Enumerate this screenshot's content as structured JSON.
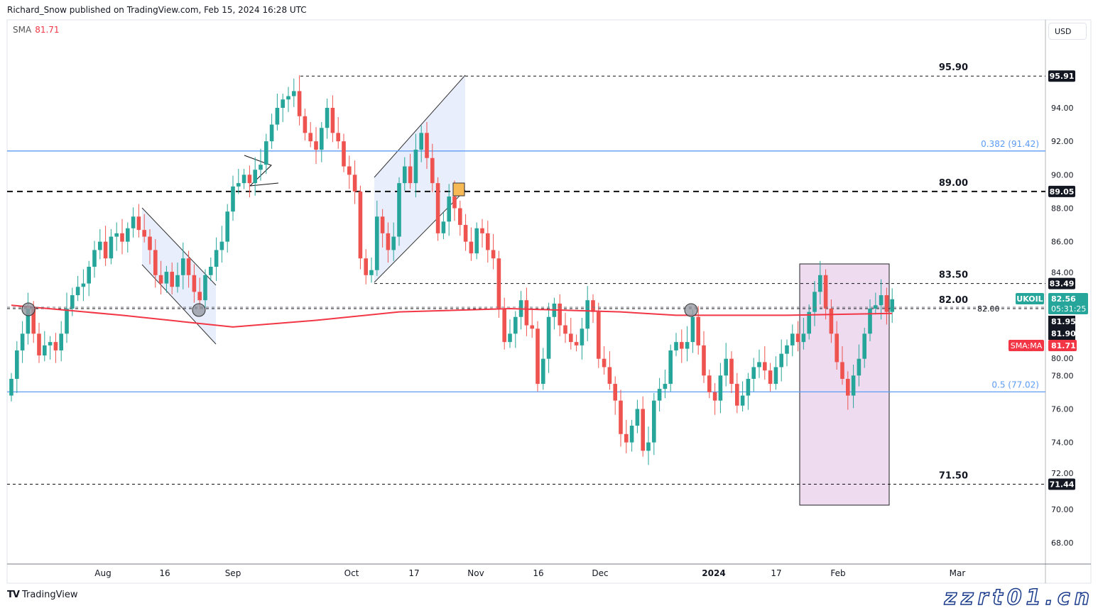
{
  "header": {
    "published": "Richard_Snow published on TradingView.com, Feb 15, 2024 16:28 UTC"
  },
  "legend": {
    "name": "SMA",
    "value": "81.71"
  },
  "currency": "USD",
  "footer": {
    "brand": "TradingView"
  },
  "watermark": "zzrt01.cn",
  "colors": {
    "up": "#26a69a",
    "down": "#ef5350",
    "sma": "#f23645",
    "fib": "#5b9cf6",
    "channel_fill": "#dfe7fb",
    "highlight_box": "#eedbf0"
  },
  "chart_data": {
    "type": "candlestick",
    "symbol": "UKOIL",
    "first_open": 76.8,
    "closes": [
      77.8,
      79.5,
      80.5,
      82.0,
      80.5,
      79.2,
      79.8,
      80.0,
      79.5,
      80.5,
      82.0,
      82.8,
      83.3,
      83.5,
      84.5,
      85.5,
      86.0,
      85.0,
      86.3,
      86.5,
      86.0,
      86.8,
      87.5,
      86.7,
      86.3,
      85.5,
      84.0,
      83.5,
      84.2,
      83.3,
      84.0,
      85.0,
      84.0,
      83.0,
      82.5,
      84.0,
      84.5,
      85.5,
      86.0,
      87.8,
      89.3,
      89.5,
      90.0,
      89.5,
      90.3,
      90.6,
      92.0,
      93.0,
      94.0,
      94.5,
      94.7,
      95.0,
      93.5,
      92.5,
      92.0,
      91.5,
      92.8,
      94.0,
      92.5,
      92.0,
      90.5,
      90.0,
      89.0,
      85.0,
      84.0,
      84.3,
      87.5,
      86.5,
      85.5,
      86.3,
      89.5,
      90.5,
      89.5,
      91.5,
      92.5,
      91.0,
      89.5,
      86.5,
      87.2,
      88.7,
      88.0,
      87.0,
      86.0,
      85.3,
      86.8,
      86.5,
      85.5,
      85.0,
      82.0,
      80.0,
      80.5,
      81.5,
      82.5,
      81.0,
      80.8,
      77.5,
      79.0,
      81.5,
      82.3,
      81.0,
      80.5,
      80.0,
      79.8,
      80.8,
      82.5,
      81.8,
      79.0,
      78.5,
      77.5,
      76.5,
      74.5,
      74.0,
      75.0,
      76.0,
      73.5,
      74.0,
      76.5,
      77.2,
      77.5,
      79.5,
      80.0,
      79.6,
      80.0,
      81.5,
      79.8,
      78.0,
      77.0,
      76.5,
      78.0,
      79.0,
      77.5,
      76.2,
      76.8,
      77.8,
      78.5,
      78.8,
      78.3,
      77.5,
      78.5,
      79.3,
      79.8,
      80.5,
      80.0,
      80.5,
      81.8,
      83.0,
      84.0,
      82.0,
      80.5,
      78.8,
      77.8,
      76.8,
      78.0,
      79.0,
      80.5,
      82.0,
      82.2,
      82.8,
      81.8,
      82.56
    ],
    "sma_points": [
      [
        0,
        82.2
      ],
      [
        20,
        81.6
      ],
      [
        40,
        80.9
      ],
      [
        55,
        81.3
      ],
      [
        70,
        81.8
      ],
      [
        90,
        82.0
      ],
      [
        110,
        81.8
      ],
      [
        120,
        81.6
      ],
      [
        140,
        81.6
      ],
      [
        159,
        81.71
      ]
    ],
    "ylim": [
      67.5,
      96.7
    ],
    "y_ticks": [
      "94.00",
      "92.00",
      "90.00",
      "88.00",
      "86.00",
      "84.00",
      "82.00",
      "80.00",
      "78.00",
      "76.00",
      "74.00",
      "72.00",
      "70.00",
      "68.00"
    ],
    "x_ticks": [
      "Aug",
      "16",
      "Sep",
      "Oct",
      "17",
      "Nov",
      "16",
      "Dec",
      "2024",
      "17",
      "Feb",
      "Mar"
    ],
    "levels": [
      {
        "label": "95.90",
        "price": 95.9,
        "axis_label": "95.91"
      },
      {
        "label": "89.00",
        "price": 89.0,
        "axis_label": "89.05"
      },
      {
        "label": "83.50",
        "price": 83.5,
        "axis_label": "83.49"
      },
      {
        "label": "82.00",
        "price": 82.0
      },
      {
        "label": "71.50",
        "price": 71.5,
        "axis_label": "71.44"
      }
    ],
    "fib_levels": [
      {
        "label": "0.382 (91.42)",
        "price": 91.42
      },
      {
        "label": "0.5 (77.02)",
        "price": 77.02
      }
    ],
    "price_tag": {
      "symbol": "UKOIL",
      "price": "82.56",
      "countdown": "05:31:25"
    },
    "extra_axis_labels": [
      "81.95",
      "81.90"
    ],
    "sma_tag": {
      "label": "SMA:MA",
      "value": "81.71"
    }
  }
}
